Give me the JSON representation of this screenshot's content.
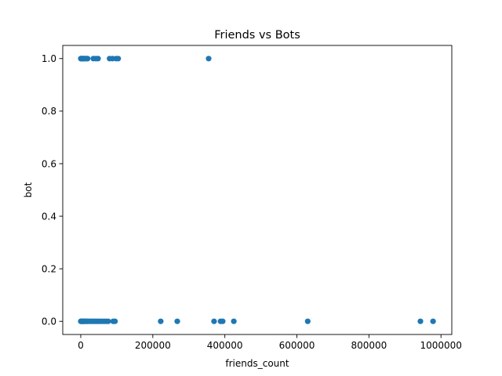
{
  "chart_data": {
    "type": "scatter",
    "title": "Friends vs Bots",
    "xlabel": "friends_count",
    "ylabel": "bot",
    "xlim": [
      -50000,
      1030000
    ],
    "ylim": [
      -0.05,
      1.05
    ],
    "xticks": [
      0,
      200000,
      400000,
      600000,
      800000,
      1000000
    ],
    "xtick_labels": [
      "0",
      "200000",
      "400000",
      "600000",
      "800000",
      "1000000"
    ],
    "yticks": [
      0.0,
      0.2,
      0.4,
      0.6,
      0.8,
      1.0
    ],
    "ytick_labels": [
      "0.0",
      "0.2",
      "0.4",
      "0.6",
      "0.8",
      "1.0"
    ],
    "grid": false,
    "legend": "none",
    "marker_color": "#1f77b4",
    "points": [
      {
        "x": 0,
        "y": 1
      },
      {
        "x": 1000,
        "y": 1
      },
      {
        "x": 2500,
        "y": 1
      },
      {
        "x": 4000,
        "y": 1
      },
      {
        "x": 6000,
        "y": 1
      },
      {
        "x": 8000,
        "y": 1
      },
      {
        "x": 10000,
        "y": 1
      },
      {
        "x": 13000,
        "y": 1
      },
      {
        "x": 16000,
        "y": 1
      },
      {
        "x": 19000,
        "y": 1
      },
      {
        "x": 35000,
        "y": 1
      },
      {
        "x": 42000,
        "y": 1
      },
      {
        "x": 48000,
        "y": 1
      },
      {
        "x": 80000,
        "y": 1
      },
      {
        "x": 88000,
        "y": 1
      },
      {
        "x": 98000,
        "y": 1
      },
      {
        "x": 104000,
        "y": 1
      },
      {
        "x": 355000,
        "y": 1
      },
      {
        "x": 0,
        "y": 0
      },
      {
        "x": 1500,
        "y": 0
      },
      {
        "x": 3000,
        "y": 0
      },
      {
        "x": 5000,
        "y": 0
      },
      {
        "x": 7000,
        "y": 0
      },
      {
        "x": 9000,
        "y": 0
      },
      {
        "x": 12000,
        "y": 0
      },
      {
        "x": 15000,
        "y": 0
      },
      {
        "x": 18000,
        "y": 0
      },
      {
        "x": 22000,
        "y": 0
      },
      {
        "x": 27000,
        "y": 0
      },
      {
        "x": 32000,
        "y": 0
      },
      {
        "x": 37000,
        "y": 0
      },
      {
        "x": 42000,
        "y": 0
      },
      {
        "x": 47000,
        "y": 0
      },
      {
        "x": 52000,
        "y": 0
      },
      {
        "x": 58000,
        "y": 0
      },
      {
        "x": 64000,
        "y": 0
      },
      {
        "x": 70000,
        "y": 0
      },
      {
        "x": 76000,
        "y": 0
      },
      {
        "x": 90000,
        "y": 0
      },
      {
        "x": 95000,
        "y": 0
      },
      {
        "x": 222000,
        "y": 0
      },
      {
        "x": 268000,
        "y": 0
      },
      {
        "x": 370000,
        "y": 0
      },
      {
        "x": 388000,
        "y": 0
      },
      {
        "x": 394000,
        "y": 0
      },
      {
        "x": 425000,
        "y": 0
      },
      {
        "x": 630000,
        "y": 0
      },
      {
        "x": 943000,
        "y": 0
      },
      {
        "x": 978000,
        "y": 0
      }
    ]
  }
}
